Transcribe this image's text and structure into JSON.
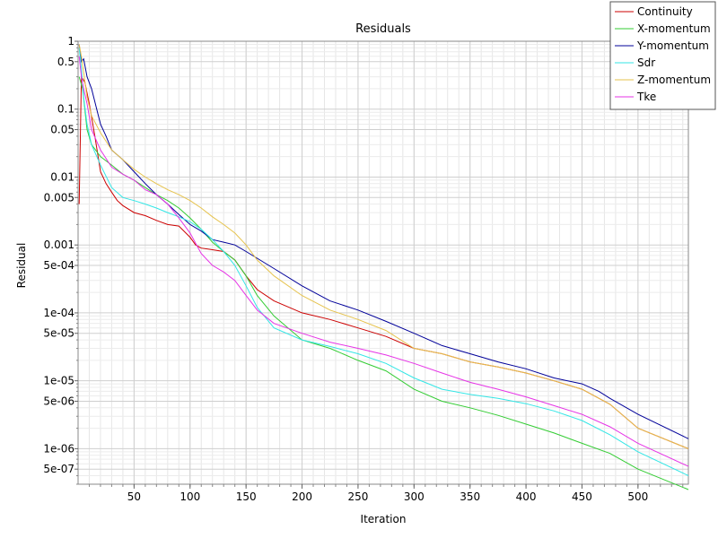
{
  "chart_data": {
    "type": "line",
    "title": "Residuals",
    "xlabel": "Iteration",
    "ylabel": "Residual",
    "yscale": "log",
    "xlim": [
      0,
      545
    ],
    "ylim": [
      3e-07,
      1
    ],
    "grid": true,
    "legend_position": "top-right",
    "xticks": [
      50,
      100,
      150,
      200,
      250,
      300,
      350,
      400,
      450,
      500
    ],
    "xtick_labels": [
      "50",
      "100",
      "150",
      "200",
      "250",
      "300",
      "350",
      "400",
      "450",
      "500"
    ],
    "yticks": [
      1,
      0.5,
      0.1,
      0.05,
      0.01,
      0.005,
      0.001,
      0.0005,
      0.0001,
      5e-05,
      1e-05,
      5e-06,
      1e-06,
      5e-07
    ],
    "ytick_labels": [
      "1",
      "0.5",
      "0.1",
      "0.05",
      "0.01",
      "0.005",
      "0.001",
      "5e-04",
      "1e-04",
      "5e-05",
      "1e-05",
      "5e-06",
      "1e-06",
      "5e-07"
    ],
    "series": [
      {
        "name": "Continuity",
        "color": "#cc0000",
        "x": [
          1,
          3,
          6,
          10,
          15,
          20,
          25,
          30,
          35,
          40,
          50,
          60,
          70,
          80,
          90,
          100,
          105,
          110,
          120,
          130,
          140,
          150,
          160,
          175,
          200,
          225,
          250,
          275,
          300,
          325,
          350,
          375,
          400,
          425,
          450,
          475,
          500,
          545
        ],
        "y": [
          0.004,
          0.3,
          0.25,
          0.12,
          0.04,
          0.012,
          0.008,
          0.006,
          0.0045,
          0.0038,
          0.003,
          0.0027,
          0.0023,
          0.002,
          0.0019,
          0.0013,
          0.001,
          0.0009,
          0.00085,
          0.0008,
          0.0006,
          0.00035,
          0.00022,
          0.00015,
          0.0001,
          8e-05,
          6e-05,
          4.5e-05,
          3e-05,
          2.5e-05,
          1.9e-05,
          1.6e-05,
          1.3e-05,
          1e-05,
          7.5e-06,
          4.5e-06,
          2e-06,
          1e-06
        ]
      },
      {
        "name": "X-momentum",
        "color": "#33cc33",
        "x": [
          1,
          4,
          8,
          12,
          20,
          30,
          40,
          50,
          60,
          70,
          80,
          90,
          100,
          110,
          120,
          130,
          140,
          150,
          160,
          175,
          200,
          225,
          250,
          275,
          300,
          325,
          350,
          375,
          400,
          425,
          450,
          475,
          500,
          545
        ],
        "y": [
          0.3,
          0.2,
          0.05,
          0.03,
          0.02,
          0.015,
          0.011,
          0.009,
          0.007,
          0.0055,
          0.0045,
          0.0035,
          0.0025,
          0.0017,
          0.0011,
          0.0008,
          0.0006,
          0.00035,
          0.00018,
          9e-05,
          4e-05,
          3e-05,
          2e-05,
          1.4e-05,
          7.5e-06,
          5e-06,
          4e-06,
          3.1e-06,
          2.3e-06,
          1.7e-06,
          1.2e-06,
          8.5e-07,
          5e-07,
          2.5e-07
        ]
      },
      {
        "name": "Y-momentum",
        "color": "#000099",
        "x": [
          1,
          3,
          5,
          8,
          12,
          20,
          25,
          30,
          40,
          50,
          60,
          70,
          80,
          90,
          100,
          110,
          120,
          130,
          140,
          150,
          175,
          200,
          225,
          250,
          275,
          300,
          325,
          350,
          375,
          400,
          425,
          450,
          465,
          475,
          500,
          545
        ],
        "y": [
          0.9,
          0.5,
          0.55,
          0.3,
          0.2,
          0.06,
          0.04,
          0.025,
          0.018,
          0.012,
          0.008,
          0.0055,
          0.004,
          0.0028,
          0.002,
          0.0016,
          0.0012,
          0.0011,
          0.001,
          0.0008,
          0.00045,
          0.00025,
          0.00015,
          0.00011,
          7.5e-05,
          5e-05,
          3.3e-05,
          2.5e-05,
          1.9e-05,
          1.5e-05,
          1.1e-05,
          9e-06,
          7e-06,
          5.5e-06,
          3.2e-06,
          1.4e-06
        ]
      },
      {
        "name": "Sdr",
        "color": "#33e6e6",
        "x": [
          1,
          3,
          5,
          8,
          12,
          20,
          30,
          40,
          50,
          60,
          70,
          80,
          90,
          100,
          110,
          120,
          130,
          140,
          150,
          160,
          175,
          200,
          225,
          250,
          275,
          300,
          325,
          350,
          375,
          400,
          425,
          450,
          475,
          500,
          545
        ],
        "y": [
          0.8,
          0.4,
          0.15,
          0.06,
          0.03,
          0.015,
          0.007,
          0.005,
          0.0045,
          0.004,
          0.0035,
          0.003,
          0.0026,
          0.0022,
          0.0017,
          0.0012,
          0.0008,
          0.0005,
          0.00025,
          0.00012,
          6e-05,
          4e-05,
          3.2e-05,
          2.5e-05,
          1.8e-05,
          1.1e-05,
          7.5e-06,
          6.3e-06,
          5.5e-06,
          4.6e-06,
          3.6e-06,
          2.6e-06,
          1.6e-06,
          9e-07,
          4e-07
        ]
      },
      {
        "name": "Z-momentum",
        "color": "#e6c34d",
        "x": [
          1,
          3,
          5,
          8,
          12,
          20,
          30,
          40,
          50,
          60,
          70,
          80,
          90,
          100,
          110,
          120,
          130,
          140,
          150,
          160,
          175,
          200,
          225,
          250,
          275,
          300,
          325,
          350,
          375,
          400,
          425,
          450,
          475,
          500,
          545
        ],
        "y": [
          0.9,
          0.6,
          0.35,
          0.15,
          0.08,
          0.045,
          0.025,
          0.018,
          0.013,
          0.01,
          0.008,
          0.0065,
          0.0055,
          0.0045,
          0.0035,
          0.0026,
          0.002,
          0.0015,
          0.001,
          0.0006,
          0.00035,
          0.00018,
          0.00011,
          8e-05,
          5.5e-05,
          3e-05,
          2.5e-05,
          1.9e-05,
          1.6e-05,
          1.3e-05,
          1e-05,
          7.5e-06,
          4.5e-06,
          2e-06,
          1e-06
        ]
      },
      {
        "name": "Tke",
        "color": "#e633e6",
        "x": [
          1,
          3,
          5,
          8,
          12,
          20,
          30,
          40,
          50,
          60,
          70,
          80,
          90,
          100,
          110,
          120,
          130,
          140,
          150,
          160,
          175,
          200,
          225,
          250,
          275,
          300,
          325,
          350,
          375,
          400,
          425,
          450,
          475,
          500,
          545
        ],
        "y": [
          0.6,
          0.3,
          0.2,
          0.12,
          0.05,
          0.025,
          0.014,
          0.011,
          0.009,
          0.0065,
          0.0055,
          0.004,
          0.0025,
          0.0015,
          0.00075,
          0.0005,
          0.0004,
          0.0003,
          0.00018,
          0.00011,
          7e-05,
          5e-05,
          3.7e-05,
          3e-05,
          2.4e-05,
          1.8e-05,
          1.3e-05,
          9.5e-06,
          7.5e-06,
          5.8e-06,
          4.3e-06,
          3.2e-06,
          2.1e-06,
          1.2e-06,
          5.5e-07
        ]
      }
    ]
  }
}
